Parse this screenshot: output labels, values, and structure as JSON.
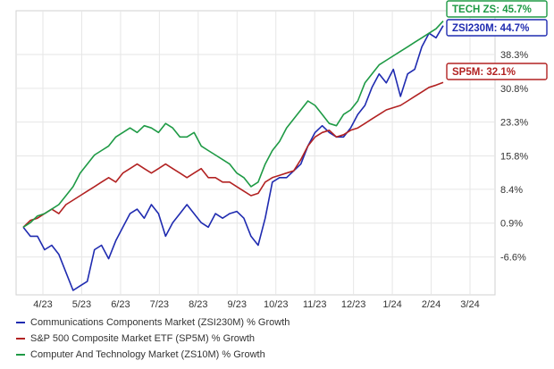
{
  "chart_data": {
    "type": "line",
    "x_tick_labels": [
      "4/23",
      "5/23",
      "6/23",
      "7/23",
      "8/23",
      "9/23",
      "10/23",
      "11/23",
      "12/23",
      "1/24",
      "2/24",
      "3/24"
    ],
    "y_tick_labels": [
      "-6.6%",
      "0.9%",
      "8.4%",
      "15.8%",
      "23.3%",
      "30.8%",
      "38.3%"
    ],
    "ylim": [
      -15,
      48
    ],
    "grid": true,
    "legend_position": "bottom",
    "series": [
      {
        "key": "zsi230m",
        "name": "Communications Components Market (ZSI230M) % Growth",
        "color": "#1f2bb0",
        "tag": "ZSI230M: 44.7%",
        "values": [
          0,
          -2.0,
          -2.0,
          -5.0,
          -4.0,
          -6.0,
          -10.0,
          -14.0,
          -13.0,
          -12.0,
          -5.0,
          -4.0,
          -7.0,
          -3.0,
          0.0,
          3.0,
          4.0,
          2.0,
          5.0,
          3.0,
          -2.0,
          1.0,
          3.0,
          5.0,
          3.0,
          1.0,
          0.0,
          3.0,
          2.0,
          3.0,
          3.5,
          2.0,
          -2.0,
          -4.0,
          2.0,
          10.0,
          11.0,
          11.0,
          12.5,
          14.0,
          18.0,
          21.0,
          22.5,
          21.0,
          20.0,
          20.0,
          22.0,
          25.0,
          27.0,
          31.0,
          34.0,
          32.0,
          35.0,
          29.0,
          34.0,
          35.0,
          40.0,
          43.0,
          42.0,
          44.7
        ]
      },
      {
        "key": "sp5m",
        "name": "S&P 500 Composite Market ETF (SP5M) % Growth",
        "color": "#b22222",
        "tag": "SP5M: 32.1%",
        "values": [
          0,
          1.5,
          2.0,
          3.0,
          4.0,
          3.0,
          5.0,
          6.0,
          7.0,
          8.0,
          9.0,
          10.0,
          11.0,
          10.0,
          12.0,
          13.0,
          14.0,
          13.0,
          12.0,
          13.0,
          14.0,
          13.0,
          12.0,
          11.0,
          12.0,
          13.0,
          11.0,
          11.0,
          10.0,
          10.0,
          9.0,
          8.0,
          7.0,
          7.5,
          10.0,
          11.0,
          11.5,
          12.0,
          12.5,
          15.0,
          18.0,
          20.0,
          21.0,
          21.5,
          20.0,
          20.5,
          21.5,
          22.0,
          23.0,
          24.0,
          25.0,
          26.0,
          26.5,
          27.0,
          28.0,
          29.0,
          30.0,
          31.0,
          31.5,
          32.1
        ]
      },
      {
        "key": "zs10m",
        "name": "Computer And Technology Market (ZS10M) % Growth",
        "color": "#1e9a45",
        "tag": "TECH ZS: 45.7%",
        "values": [
          0,
          1.0,
          2.5,
          3.0,
          4.0,
          5.0,
          7.0,
          9.0,
          12.0,
          14.0,
          16.0,
          17.0,
          18.0,
          20.0,
          21.0,
          22.0,
          21.0,
          22.5,
          22.0,
          21.0,
          23.0,
          22.0,
          20.0,
          20.0,
          21.0,
          18.0,
          17.0,
          16.0,
          15.0,
          14.0,
          12.0,
          11.0,
          9.0,
          10.0,
          14.0,
          17.0,
          19.0,
          22.0,
          24.0,
          26.0,
          28.0,
          27.0,
          25.0,
          23.0,
          22.5,
          25.0,
          26.0,
          28.0,
          32.0,
          34.0,
          36.0,
          37.0,
          38.0,
          39.0,
          40.0,
          41.0,
          42.0,
          43.0,
          44.0,
          45.7
        ]
      }
    ]
  }
}
